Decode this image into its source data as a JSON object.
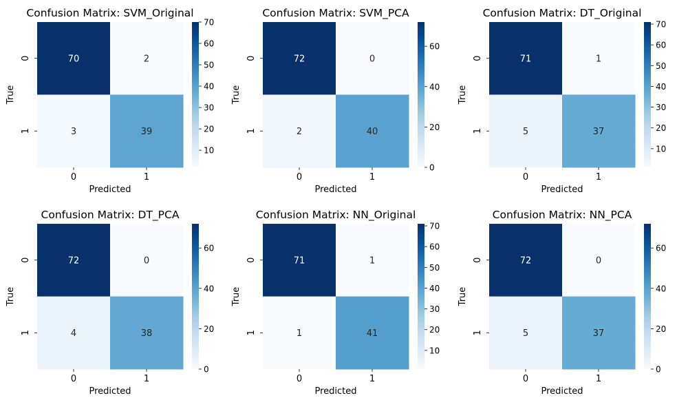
{
  "figure": {
    "background": "#ffffff"
  },
  "chart_data": [
    {
      "type": "heatmap",
      "title": "Confusion Matrix: SVM_Original",
      "xlabel": "Predicted",
      "ylabel": "True",
      "x_categories": [
        "0",
        "1"
      ],
      "y_categories": [
        "0",
        "1"
      ],
      "values": [
        [
          70,
          2
        ],
        [
          3,
          39
        ]
      ],
      "colormap": "Blues",
      "vmin": 2,
      "vmax": 70,
      "colorbar_ticks": [
        10,
        20,
        30,
        40,
        50,
        60,
        70
      ]
    },
    {
      "type": "heatmap",
      "title": "Confusion Matrix: SVM_PCA",
      "xlabel": "Predicted",
      "ylabel": "True",
      "x_categories": [
        "0",
        "1"
      ],
      "y_categories": [
        "0",
        "1"
      ],
      "values": [
        [
          72,
          0
        ],
        [
          2,
          40
        ]
      ],
      "colormap": "Blues",
      "vmin": 0,
      "vmax": 72,
      "colorbar_ticks": [
        0,
        20,
        40,
        60
      ]
    },
    {
      "type": "heatmap",
      "title": "Confusion Matrix: DT_Original",
      "xlabel": "Predicted",
      "ylabel": "True",
      "x_categories": [
        "0",
        "1"
      ],
      "y_categories": [
        "0",
        "1"
      ],
      "values": [
        [
          71,
          1
        ],
        [
          5,
          37
        ]
      ],
      "colormap": "Blues",
      "vmin": 1,
      "vmax": 71,
      "colorbar_ticks": [
        10,
        20,
        30,
        40,
        50,
        60,
        70
      ]
    },
    {
      "type": "heatmap",
      "title": "Confusion Matrix: DT_PCA",
      "xlabel": "Predicted",
      "ylabel": "True",
      "x_categories": [
        "0",
        "1"
      ],
      "y_categories": [
        "0",
        "1"
      ],
      "values": [
        [
          72,
          0
        ],
        [
          4,
          38
        ]
      ],
      "colormap": "Blues",
      "vmin": 0,
      "vmax": 72,
      "colorbar_ticks": [
        0,
        20,
        40,
        60
      ]
    },
    {
      "type": "heatmap",
      "title": "Confusion Matrix: NN_Original",
      "xlabel": "Predicted",
      "ylabel": "True",
      "x_categories": [
        "0",
        "1"
      ],
      "y_categories": [
        "0",
        "1"
      ],
      "values": [
        [
          71,
          1
        ],
        [
          1,
          41
        ]
      ],
      "colormap": "Blues",
      "vmin": 1,
      "vmax": 71,
      "colorbar_ticks": [
        10,
        20,
        30,
        40,
        50,
        60,
        70
      ]
    },
    {
      "type": "heatmap",
      "title": "Confusion Matrix: NN_PCA",
      "xlabel": "Predicted",
      "ylabel": "True",
      "x_categories": [
        "0",
        "1"
      ],
      "y_categories": [
        "0",
        "1"
      ],
      "values": [
        [
          72,
          0
        ],
        [
          5,
          37
        ]
      ],
      "colormap": "Blues",
      "vmin": 0,
      "vmax": 72,
      "colorbar_ticks": [
        0,
        20,
        40,
        60
      ]
    }
  ]
}
